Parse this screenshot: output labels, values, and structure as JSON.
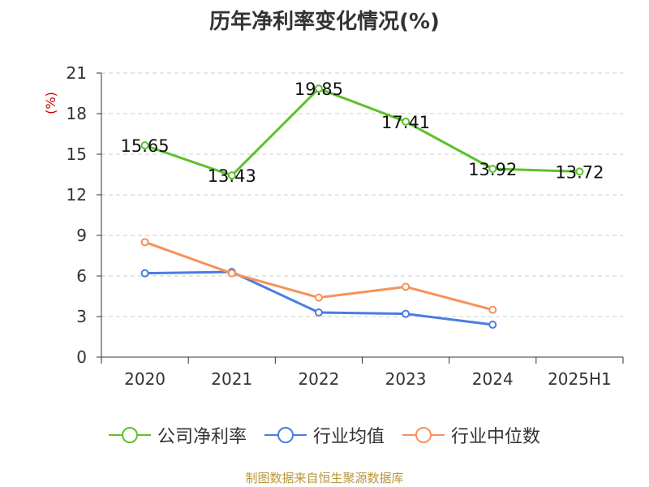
{
  "chart_data": {
    "type": "line",
    "title": "历年净利率变化情况(%)",
    "ylabel": "(%)",
    "xlabel": "",
    "categories": [
      "2020",
      "2021",
      "2022",
      "2023",
      "2024",
      "2025H1"
    ],
    "ylim": [
      0,
      21
    ],
    "yticks": [
      0,
      3,
      6,
      9,
      12,
      15,
      18,
      21
    ],
    "grid": "horizontal-dashed",
    "legend_position": "bottom",
    "series": [
      {
        "name": "公司净利率",
        "color": "#5cc22a",
        "show_labels": true,
        "values": [
          15.65,
          13.43,
          19.85,
          17.41,
          13.92,
          13.72
        ],
        "labels": [
          "15.65",
          "13.43",
          "19.85",
          "17.41",
          "13.92",
          "13.72"
        ]
      },
      {
        "name": "行业均值",
        "color": "#4a7de0",
        "show_labels": false,
        "values": [
          6.2,
          6.3,
          3.3,
          3.2,
          2.4,
          null
        ]
      },
      {
        "name": "行业中位数",
        "color": "#f5925a",
        "show_labels": false,
        "values": [
          8.5,
          6.2,
          4.4,
          5.2,
          3.5,
          null
        ]
      }
    ]
  },
  "source": "制图数据来自恒生聚源数据库"
}
